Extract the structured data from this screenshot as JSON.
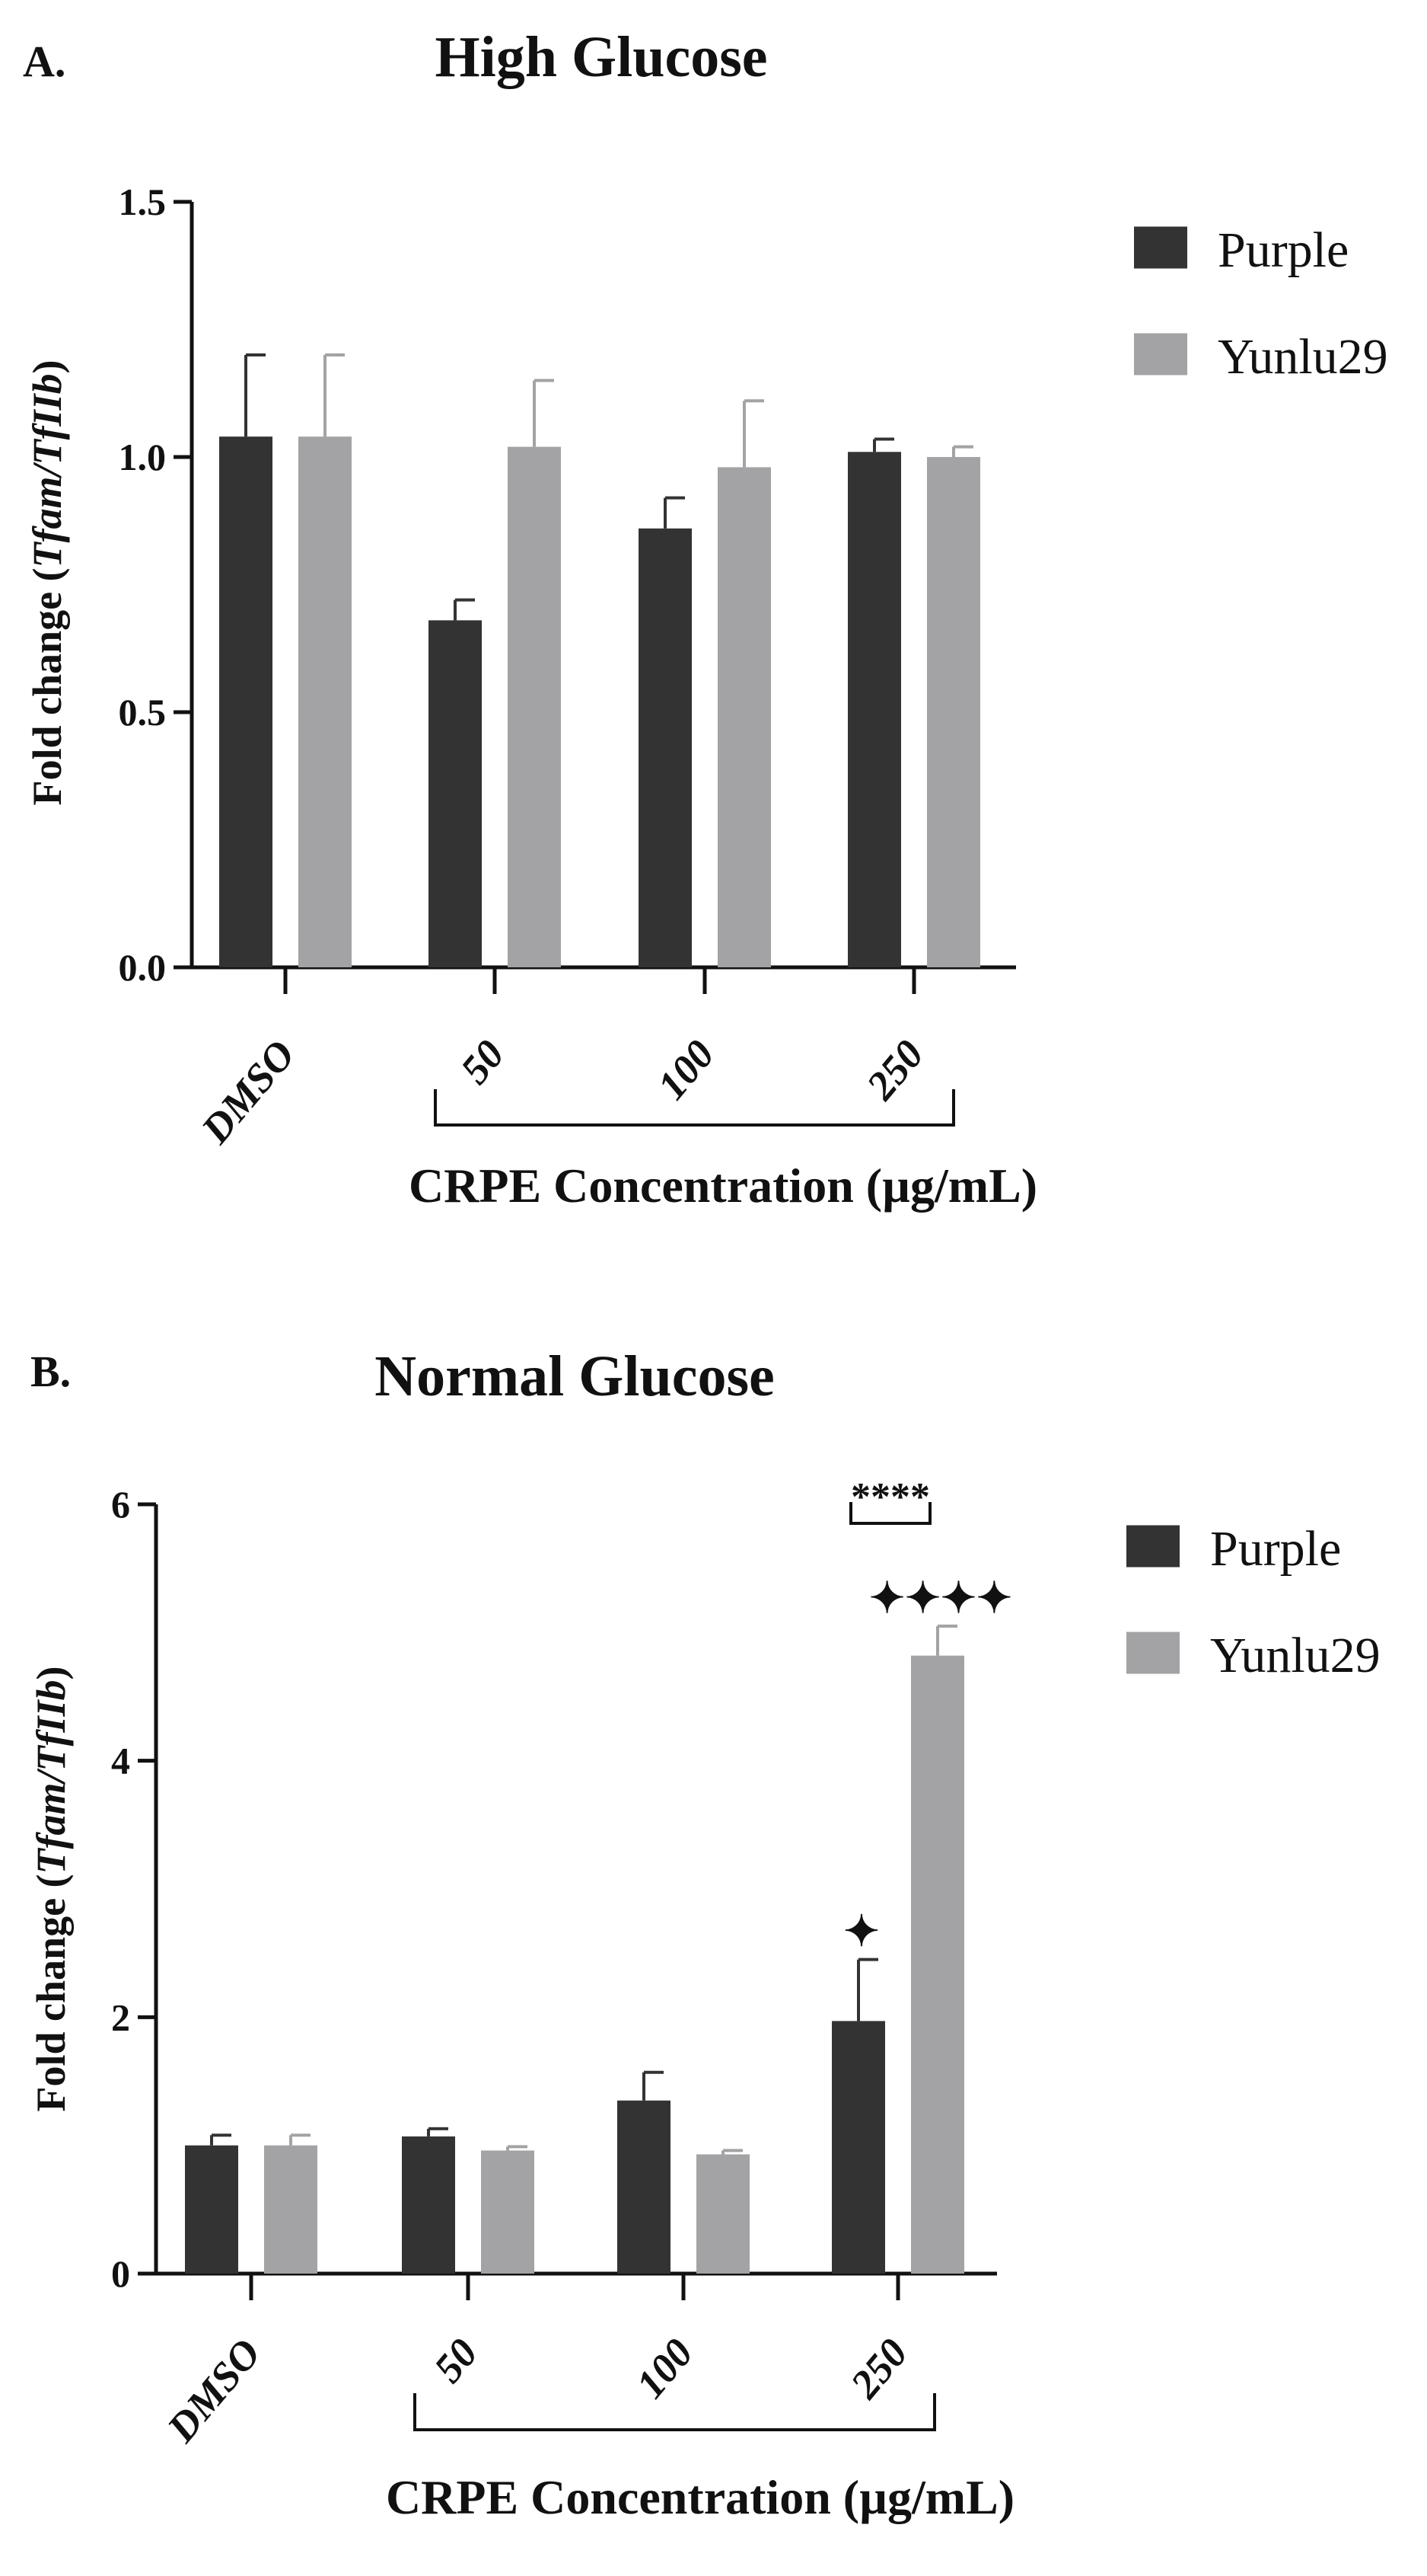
{
  "chart_data": [
    {
      "type": "bar",
      "panel_label": "A.",
      "title": "High Glucose",
      "ylabel_prefix": "Fold change (",
      "ylabel_italic": "Tfam/TfIIb",
      "ylabel_suffix": ")",
      "xlabel": "CRPE Concentration (µg/mL)",
      "categories": [
        "DMSO",
        "50",
        "100",
        "250"
      ],
      "yticks": [
        "0.0",
        "0.5",
        "1.0",
        "1.5"
      ],
      "ylim": [
        0,
        1.5
      ],
      "series": [
        {
          "name": "Purple",
          "color": "#333333",
          "values": [
            1.04,
            0.68,
            0.86,
            1.01
          ],
          "errors": [
            0.16,
            0.04,
            0.06,
            0.025
          ]
        },
        {
          "name": "Yunlu29",
          "color": "#a3a3a5",
          "values": [
            1.04,
            1.02,
            0.98,
            1.0
          ],
          "errors": [
            0.16,
            0.13,
            0.13,
            0.02
          ]
        }
      ],
      "annotations": []
    },
    {
      "type": "bar",
      "panel_label": "B.",
      "title": "Normal Glucose",
      "ylabel_prefix": "Fold change (",
      "ylabel_italic": "Tfam/TfIIb",
      "ylabel_suffix": ")",
      "xlabel": "CRPE Concentration (µg/mL)",
      "categories": [
        "DMSO",
        "50",
        "100",
        "250"
      ],
      "yticks": [
        "0",
        "2",
        "4",
        "6"
      ],
      "ylim": [
        0,
        6
      ],
      "series": [
        {
          "name": "Purple",
          "color": "#333333",
          "values": [
            1.0,
            1.07,
            1.35,
            1.97
          ],
          "errors": [
            0.08,
            0.06,
            0.22,
            0.48
          ]
        },
        {
          "name": "Yunlu29",
          "color": "#a3a3a5",
          "values": [
            1.0,
            0.96,
            0.93,
            4.82
          ],
          "errors": [
            0.08,
            0.03,
            0.03,
            0.23
          ]
        }
      ],
      "annotations": [
        {
          "text": "****",
          "type": "comparison-bracket",
          "category_index": 3
        },
        {
          "text": "✦",
          "type": "above-bar",
          "category_index": 3,
          "series_index": 0
        },
        {
          "text": "✦✦✦✦",
          "type": "above-bar",
          "category_index": 3,
          "series_index": 1
        }
      ]
    }
  ]
}
